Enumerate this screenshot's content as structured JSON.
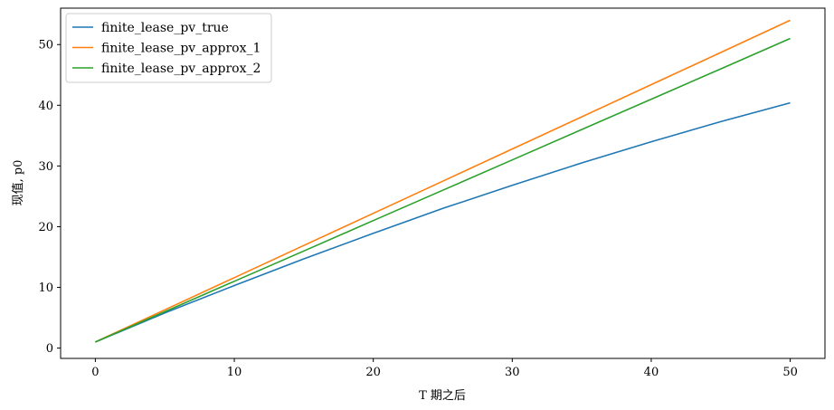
{
  "chart_data": {
    "type": "line",
    "xlabel": "T 期之后",
    "ylabel": "现值, p0",
    "xlim": [
      -2.5,
      52.5
    ],
    "ylim": [
      -1.7,
      56.0
    ],
    "xticks": [
      0,
      10,
      20,
      30,
      40,
      50
    ],
    "yticks": [
      0,
      10,
      20,
      30,
      40,
      50
    ],
    "grid": false,
    "legend": "top-left",
    "x": [
      0,
      5,
      10,
      15,
      20,
      25,
      30,
      35,
      40,
      45,
      50
    ],
    "series": [
      {
        "name": "finite_lease_pv_true",
        "color": "#1f77b4",
        "values": [
          1.0,
          5.8,
          10.3,
          14.7,
          18.9,
          23.0,
          26.8,
          30.5,
          34.0,
          37.3,
          40.4
        ]
      },
      {
        "name": "finite_lease_pv_approx_1",
        "color": "#ff7f0e",
        "values": [
          1.0,
          6.3,
          11.6,
          16.9,
          22.2,
          27.5,
          32.8,
          38.1,
          43.4,
          48.7,
          54.0
        ]
      },
      {
        "name": "finite_lease_pv_approx_2",
        "color": "#2ca02c",
        "values": [
          1.0,
          6.0,
          11.0,
          16.0,
          21.0,
          26.0,
          31.0,
          36.0,
          41.0,
          46.0,
          51.0
        ]
      }
    ]
  }
}
